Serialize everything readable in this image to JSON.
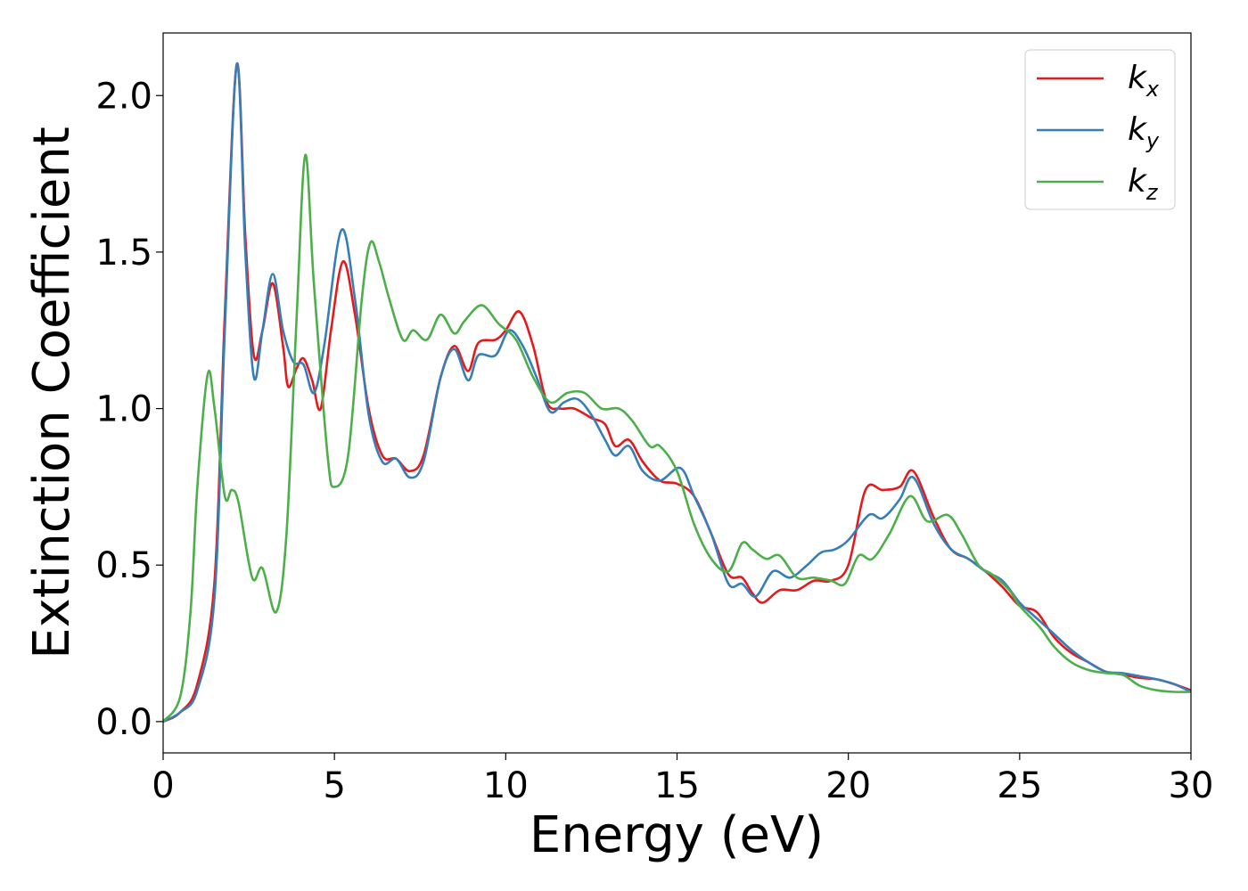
{
  "chart_data": {
    "type": "line",
    "title": "",
    "xlabel": "Energy (eV)",
    "ylabel": "Extinction Coefficient",
    "xlim": [
      0,
      30
    ],
    "ylim": [
      -0.1,
      2.2
    ],
    "xticks": [
      0,
      5,
      10,
      15,
      20,
      25,
      30
    ],
    "xtick_labels": [
      "0",
      "5",
      "10",
      "15",
      "20",
      "25",
      "30"
    ],
    "yticks": [
      0.0,
      0.5,
      1.0,
      1.5,
      2.0
    ],
    "ytick_labels": [
      "0.0",
      "0.5",
      "1.0",
      "1.5",
      "2.0"
    ],
    "grid": false,
    "legend_position": "top-right",
    "series": [
      {
        "name": "k",
        "subscript": "x",
        "color": "#e41a1c",
        "points": [
          [
            0,
            0
          ],
          [
            0.5,
            0.03
          ],
          [
            1,
            0.12
          ],
          [
            1.5,
            0.45
          ],
          [
            1.8,
            1.3
          ],
          [
            2.15,
            2.1
          ],
          [
            2.4,
            1.55
          ],
          [
            2.65,
            1.17
          ],
          [
            2.9,
            1.25
          ],
          [
            3.2,
            1.4
          ],
          [
            3.5,
            1.2
          ],
          [
            3.65,
            1.07
          ],
          [
            3.9,
            1.13
          ],
          [
            4.1,
            1.16
          ],
          [
            4.35,
            1.09
          ],
          [
            4.6,
            1.0
          ],
          [
            4.9,
            1.25
          ],
          [
            5.25,
            1.47
          ],
          [
            5.6,
            1.3
          ],
          [
            6.0,
            1.0
          ],
          [
            6.4,
            0.85
          ],
          [
            6.8,
            0.84
          ],
          [
            7.2,
            0.8
          ],
          [
            7.6,
            0.85
          ],
          [
            8.1,
            1.1
          ],
          [
            8.5,
            1.2
          ],
          [
            8.9,
            1.12
          ],
          [
            9.2,
            1.21
          ],
          [
            9.7,
            1.22
          ],
          [
            10.0,
            1.25
          ],
          [
            10.4,
            1.31
          ],
          [
            10.8,
            1.2
          ],
          [
            11.2,
            1.02
          ],
          [
            11.6,
            1.0
          ],
          [
            12.0,
            1.0
          ],
          [
            12.5,
            0.97
          ],
          [
            12.9,
            0.95
          ],
          [
            13.2,
            0.88
          ],
          [
            13.6,
            0.9
          ],
          [
            14.0,
            0.83
          ],
          [
            14.5,
            0.77
          ],
          [
            15.0,
            0.76
          ],
          [
            15.5,
            0.72
          ],
          [
            16.0,
            0.6
          ],
          [
            16.5,
            0.47
          ],
          [
            16.9,
            0.46
          ],
          [
            17.2,
            0.41
          ],
          [
            17.5,
            0.38
          ],
          [
            18.0,
            0.42
          ],
          [
            18.5,
            0.42
          ],
          [
            19.0,
            0.45
          ],
          [
            19.5,
            0.45
          ],
          [
            20.0,
            0.5
          ],
          [
            20.5,
            0.74
          ],
          [
            21.0,
            0.74
          ],
          [
            21.5,
            0.75
          ],
          [
            21.9,
            0.8
          ],
          [
            22.5,
            0.65
          ],
          [
            23.0,
            0.55
          ],
          [
            23.5,
            0.52
          ],
          [
            24.0,
            0.48
          ],
          [
            24.5,
            0.43
          ],
          [
            25.0,
            0.37
          ],
          [
            25.5,
            0.35
          ],
          [
            26.0,
            0.27
          ],
          [
            26.5,
            0.22
          ],
          [
            27.0,
            0.19
          ],
          [
            27.5,
            0.16
          ],
          [
            28.0,
            0.15
          ],
          [
            28.5,
            0.14
          ],
          [
            29.0,
            0.135
          ],
          [
            29.5,
            0.12
          ],
          [
            30.0,
            0.1
          ]
        ]
      },
      {
        "name": "k",
        "subscript": "y",
        "color": "#377eb8",
        "points": [
          [
            0,
            0
          ],
          [
            0.5,
            0.03
          ],
          [
            1,
            0.1
          ],
          [
            1.5,
            0.4
          ],
          [
            1.8,
            1.25
          ],
          [
            2.15,
            2.1
          ],
          [
            2.4,
            1.5
          ],
          [
            2.65,
            1.1
          ],
          [
            2.9,
            1.25
          ],
          [
            3.2,
            1.43
          ],
          [
            3.5,
            1.25
          ],
          [
            3.8,
            1.15
          ],
          [
            4.1,
            1.14
          ],
          [
            4.4,
            1.05
          ],
          [
            4.7,
            1.2
          ],
          [
            5.2,
            1.57
          ],
          [
            5.6,
            1.35
          ],
          [
            6.0,
            0.98
          ],
          [
            6.4,
            0.83
          ],
          [
            6.8,
            0.84
          ],
          [
            7.2,
            0.78
          ],
          [
            7.6,
            0.83
          ],
          [
            8.1,
            1.1
          ],
          [
            8.5,
            1.19
          ],
          [
            8.9,
            1.09
          ],
          [
            9.2,
            1.17
          ],
          [
            9.7,
            1.17
          ],
          [
            10.1,
            1.25
          ],
          [
            10.5,
            1.2
          ],
          [
            10.9,
            1.1
          ],
          [
            11.3,
            0.99
          ],
          [
            11.7,
            1.02
          ],
          [
            12.1,
            1.03
          ],
          [
            12.5,
            0.98
          ],
          [
            12.9,
            0.9
          ],
          [
            13.2,
            0.85
          ],
          [
            13.6,
            0.88
          ],
          [
            14.0,
            0.8
          ],
          [
            14.5,
            0.77
          ],
          [
            15.1,
            0.81
          ],
          [
            15.5,
            0.72
          ],
          [
            16.0,
            0.6
          ],
          [
            16.5,
            0.44
          ],
          [
            16.9,
            0.44
          ],
          [
            17.3,
            0.4
          ],
          [
            17.8,
            0.48
          ],
          [
            18.3,
            0.46
          ],
          [
            18.8,
            0.5
          ],
          [
            19.2,
            0.54
          ],
          [
            19.6,
            0.55
          ],
          [
            20.0,
            0.58
          ],
          [
            20.6,
            0.66
          ],
          [
            21.0,
            0.65
          ],
          [
            21.5,
            0.71
          ],
          [
            21.9,
            0.78
          ],
          [
            22.5,
            0.63
          ],
          [
            23.0,
            0.55
          ],
          [
            23.5,
            0.52
          ],
          [
            24.0,
            0.48
          ],
          [
            24.5,
            0.45
          ],
          [
            25.0,
            0.38
          ],
          [
            25.5,
            0.33
          ],
          [
            26.0,
            0.28
          ],
          [
            26.5,
            0.23
          ],
          [
            27.0,
            0.19
          ],
          [
            27.5,
            0.16
          ],
          [
            28.0,
            0.155
          ],
          [
            28.5,
            0.145
          ],
          [
            29.0,
            0.135
          ],
          [
            29.5,
            0.12
          ],
          [
            30.0,
            0.095
          ]
        ]
      },
      {
        "name": "k",
        "subscript": "z",
        "color": "#4daf4a",
        "points": [
          [
            0,
            0
          ],
          [
            0.5,
            0.08
          ],
          [
            0.8,
            0.35
          ],
          [
            1.0,
            0.75
          ],
          [
            1.3,
            1.11
          ],
          [
            1.5,
            1.0
          ],
          [
            1.8,
            0.72
          ],
          [
            2.0,
            0.74
          ],
          [
            2.2,
            0.7
          ],
          [
            2.6,
            0.46
          ],
          [
            2.9,
            0.49
          ],
          [
            3.3,
            0.35
          ],
          [
            3.6,
            0.6
          ],
          [
            3.9,
            1.3
          ],
          [
            4.15,
            1.81
          ],
          [
            4.4,
            1.4
          ],
          [
            4.8,
            0.85
          ],
          [
            5.0,
            0.75
          ],
          [
            5.4,
            0.85
          ],
          [
            5.8,
            1.35
          ],
          [
            6.05,
            1.53
          ],
          [
            6.3,
            1.47
          ],
          [
            6.6,
            1.35
          ],
          [
            7.0,
            1.22
          ],
          [
            7.3,
            1.25
          ],
          [
            7.7,
            1.22
          ],
          [
            8.1,
            1.3
          ],
          [
            8.5,
            1.24
          ],
          [
            8.8,
            1.28
          ],
          [
            9.3,
            1.33
          ],
          [
            9.8,
            1.27
          ],
          [
            10.3,
            1.22
          ],
          [
            10.8,
            1.1
          ],
          [
            11.3,
            1.02
          ],
          [
            11.8,
            1.05
          ],
          [
            12.3,
            1.05
          ],
          [
            12.8,
            1.0
          ],
          [
            13.3,
            1.0
          ],
          [
            13.7,
            0.96
          ],
          [
            14.2,
            0.88
          ],
          [
            14.5,
            0.88
          ],
          [
            15.0,
            0.8
          ],
          [
            15.5,
            0.63
          ],
          [
            16.0,
            0.52
          ],
          [
            16.5,
            0.48
          ],
          [
            16.9,
            0.57
          ],
          [
            17.2,
            0.55
          ],
          [
            17.6,
            0.52
          ],
          [
            18.0,
            0.53
          ],
          [
            18.5,
            0.46
          ],
          [
            19.0,
            0.46
          ],
          [
            19.5,
            0.45
          ],
          [
            19.9,
            0.44
          ],
          [
            20.3,
            0.53
          ],
          [
            20.7,
            0.52
          ],
          [
            21.2,
            0.6
          ],
          [
            21.8,
            0.72
          ],
          [
            22.3,
            0.64
          ],
          [
            22.9,
            0.66
          ],
          [
            23.3,
            0.6
          ],
          [
            23.8,
            0.5
          ],
          [
            24.2,
            0.47
          ],
          [
            24.7,
            0.42
          ],
          [
            25.0,
            0.37
          ],
          [
            25.6,
            0.3
          ],
          [
            26.0,
            0.24
          ],
          [
            26.5,
            0.19
          ],
          [
            27.0,
            0.165
          ],
          [
            27.5,
            0.155
          ],
          [
            28.0,
            0.15
          ],
          [
            28.5,
            0.115
          ],
          [
            29.0,
            0.1
          ],
          [
            29.5,
            0.095
          ],
          [
            30.0,
            0.095
          ]
        ]
      }
    ]
  }
}
